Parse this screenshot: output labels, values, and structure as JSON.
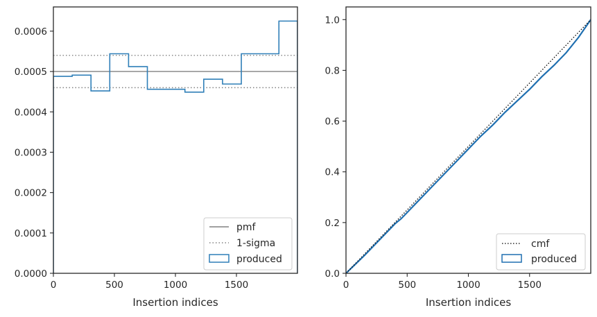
{
  "chart_data": [
    {
      "type": "step",
      "xlabel": "Insertion indices",
      "ylabel": "",
      "xlim": [
        0,
        2000
      ],
      "ylim": [
        0,
        0.00066
      ],
      "x_ticks": [
        "0",
        "500",
        "1000",
        "1500"
      ],
      "y_ticks": [
        "0.0000",
        "0.0001",
        "0.0002",
        "0.0003",
        "0.0004",
        "0.0005",
        "0.0006"
      ],
      "grid": false,
      "legend_placement": "lower-right",
      "colors": {
        "pmf": "#808080",
        "sigma": "#808080",
        "produced": "#2f7fb8"
      },
      "pmf": {
        "label": "pmf",
        "y": 0.0005
      },
      "sigma": {
        "label": "1-sigma",
        "lower": 0.00046,
        "upper": 0.00054
      },
      "produced": {
        "label": "produced",
        "bin_edges": [
          0,
          154,
          308,
          462,
          616,
          770,
          924,
          1078,
          1232,
          1386,
          1540,
          1694,
          1848,
          2000
        ],
        "values": [
          0.000488,
          0.000491,
          0.000452,
          0.000544,
          0.000512,
          0.000456,
          0.000456,
          0.000449,
          0.000481,
          0.000469,
          0.000544,
          0.000544,
          0.000625
        ]
      }
    },
    {
      "type": "line",
      "xlabel": "Insertion indices",
      "ylabel": "",
      "xlim": [
        0,
        2000
      ],
      "ylim": [
        0,
        1.05
      ],
      "x_ticks": [
        "0",
        "500",
        "1000",
        "1500"
      ],
      "y_ticks": [
        "0.0",
        "0.2",
        "0.4",
        "0.6",
        "0.8",
        "1.0"
      ],
      "grid": false,
      "legend_placement": "lower-right",
      "colors": {
        "cmf": "#000000",
        "produced": "#1f6fb0"
      },
      "cmf": {
        "label": "cmf",
        "x": [
          0,
          2000
        ],
        "y": [
          0,
          1.0
        ]
      },
      "produced": {
        "label": "produced",
        "x": [
          0,
          150,
          300,
          400,
          450,
          500,
          600,
          700,
          800,
          900,
          1000,
          1100,
          1200,
          1300,
          1400,
          1500,
          1600,
          1700,
          1800,
          1900,
          2000
        ],
        "y": [
          0,
          0.07,
          0.145,
          0.195,
          0.215,
          0.24,
          0.29,
          0.34,
          0.39,
          0.44,
          0.49,
          0.54,
          0.585,
          0.635,
          0.68,
          0.725,
          0.775,
          0.82,
          0.87,
          0.93,
          1.0
        ]
      }
    }
  ]
}
